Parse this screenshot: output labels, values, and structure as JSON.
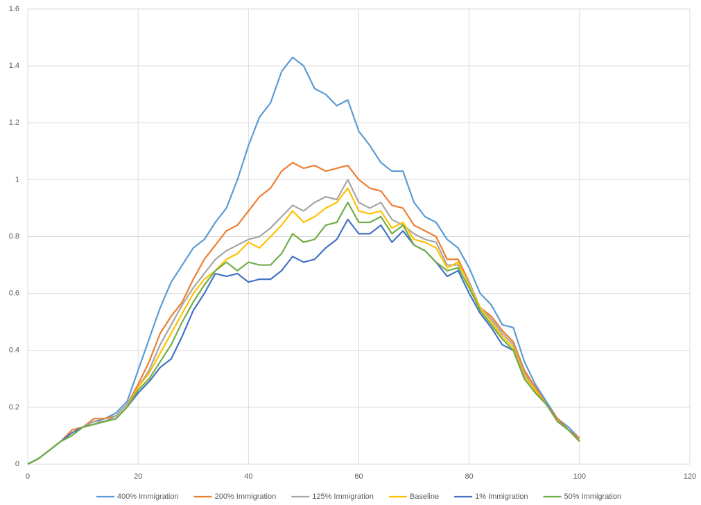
{
  "chart_data": {
    "type": "line",
    "x": [
      0,
      2,
      4,
      6,
      8,
      10,
      12,
      14,
      16,
      18,
      20,
      22,
      24,
      26,
      28,
      30,
      32,
      34,
      36,
      38,
      40,
      42,
      44,
      46,
      48,
      50,
      52,
      54,
      56,
      58,
      60,
      62,
      64,
      66,
      68,
      70,
      72,
      74,
      76,
      78,
      80,
      82,
      84,
      86,
      88,
      90,
      92,
      94,
      96,
      98,
      100
    ],
    "series": [
      {
        "name": "400% Immigration",
        "color": "#5b9bd5",
        "values": [
          0,
          0.02,
          0.05,
          0.08,
          0.11,
          0.13,
          0.15,
          0.16,
          0.18,
          0.22,
          0.33,
          0.44,
          0.55,
          0.64,
          0.7,
          0.76,
          0.79,
          0.85,
          0.9,
          1.0,
          1.12,
          1.22,
          1.27,
          1.38,
          1.43,
          1.4,
          1.32,
          1.3,
          1.26,
          1.28,
          1.17,
          1.12,
          1.06,
          1.03,
          1.03,
          0.92,
          0.87,
          0.85,
          0.79,
          0.76,
          0.69,
          0.6,
          0.56,
          0.49,
          0.48,
          0.36,
          0.28,
          0.22,
          0.16,
          0.13,
          0.09
        ]
      },
      {
        "name": "200% Immigration",
        "color": "#ed7d31",
        "values": [
          0,
          0.02,
          0.05,
          0.08,
          0.12,
          0.13,
          0.16,
          0.16,
          0.17,
          0.21,
          0.28,
          0.36,
          0.46,
          0.52,
          0.57,
          0.65,
          0.72,
          0.77,
          0.82,
          0.84,
          0.89,
          0.94,
          0.97,
          1.03,
          1.06,
          1.04,
          1.05,
          1.03,
          1.04,
          1.05,
          1.0,
          0.97,
          0.96,
          0.91,
          0.9,
          0.84,
          0.82,
          0.8,
          0.72,
          0.72,
          0.64,
          0.55,
          0.52,
          0.47,
          0.43,
          0.33,
          0.27,
          0.21,
          0.16,
          0.12,
          0.09
        ]
      },
      {
        "name": "125% Immigration",
        "color": "#a5a5a5",
        "values": [
          0,
          0.02,
          0.05,
          0.08,
          0.11,
          0.13,
          0.15,
          0.15,
          0.17,
          0.21,
          0.27,
          0.33,
          0.42,
          0.49,
          0.56,
          0.62,
          0.67,
          0.72,
          0.75,
          0.77,
          0.79,
          0.8,
          0.83,
          0.87,
          0.91,
          0.89,
          0.92,
          0.94,
          0.93,
          1.0,
          0.92,
          0.9,
          0.92,
          0.86,
          0.84,
          0.81,
          0.79,
          0.78,
          0.7,
          0.7,
          0.64,
          0.55,
          0.51,
          0.46,
          0.42,
          0.32,
          0.26,
          0.21,
          0.15,
          0.12,
          0.08
        ]
      },
      {
        "name": "Baseline",
        "color": "#ffc000",
        "values": [
          0,
          0.02,
          0.05,
          0.08,
          0.11,
          0.13,
          0.14,
          0.15,
          0.16,
          0.2,
          0.27,
          0.32,
          0.39,
          0.46,
          0.53,
          0.6,
          0.65,
          0.68,
          0.72,
          0.74,
          0.78,
          0.76,
          0.8,
          0.84,
          0.89,
          0.85,
          0.87,
          0.9,
          0.92,
          0.97,
          0.89,
          0.88,
          0.89,
          0.83,
          0.85,
          0.79,
          0.78,
          0.76,
          0.69,
          0.71,
          0.63,
          0.55,
          0.5,
          0.45,
          0.41,
          0.31,
          0.26,
          0.21,
          0.15,
          0.12,
          0.08
        ]
      },
      {
        "name": "1% Immigration",
        "color": "#4472c4",
        "values": [
          0,
          0.02,
          0.05,
          0.08,
          0.11,
          0.13,
          0.14,
          0.15,
          0.16,
          0.2,
          0.25,
          0.29,
          0.34,
          0.37,
          0.45,
          0.54,
          0.6,
          0.67,
          0.66,
          0.67,
          0.64,
          0.65,
          0.65,
          0.68,
          0.73,
          0.71,
          0.72,
          0.76,
          0.79,
          0.86,
          0.81,
          0.81,
          0.84,
          0.78,
          0.82,
          0.77,
          0.75,
          0.71,
          0.66,
          0.68,
          0.6,
          0.53,
          0.48,
          0.42,
          0.4,
          0.3,
          0.25,
          0.21,
          0.15,
          0.12,
          0.08
        ]
      },
      {
        "name": "50% Immigration",
        "color": "#70ad47",
        "values": [
          0,
          0.02,
          0.05,
          0.08,
          0.1,
          0.13,
          0.14,
          0.15,
          0.16,
          0.2,
          0.26,
          0.3,
          0.36,
          0.42,
          0.5,
          0.57,
          0.63,
          0.68,
          0.71,
          0.68,
          0.71,
          0.7,
          0.7,
          0.74,
          0.81,
          0.78,
          0.79,
          0.84,
          0.85,
          0.92,
          0.85,
          0.85,
          0.87,
          0.81,
          0.84,
          0.77,
          0.75,
          0.71,
          0.68,
          0.69,
          0.62,
          0.54,
          0.49,
          0.44,
          0.4,
          0.3,
          0.25,
          0.21,
          0.15,
          0.12,
          0.08
        ]
      }
    ],
    "xlim": [
      0,
      120
    ],
    "xticks": [
      0,
      20,
      40,
      60,
      80,
      100,
      120
    ],
    "ylim": [
      0,
      1.6
    ],
    "yticks": [
      0,
      0.2,
      0.4,
      0.6,
      0.8,
      1,
      1.2,
      1.4,
      1.6
    ],
    "grid": true,
    "legend": "bottom"
  }
}
